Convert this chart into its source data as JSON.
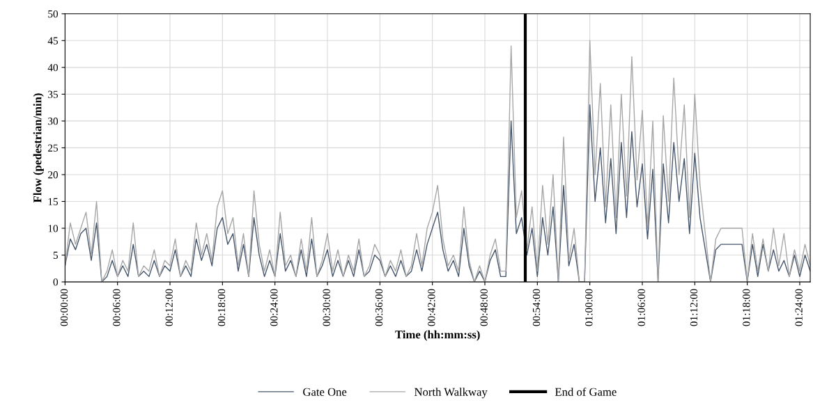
{
  "chart_data": {
    "type": "line",
    "xlabel": "Time (hh:mm:ss)",
    "ylabel": "Flow (pedestrian/min)",
    "x": [
      0,
      0.01,
      0.02,
      0.03,
      0.04,
      0.05,
      0.06,
      0.07,
      0.08,
      0.09,
      0.1,
      0.11,
      0.12,
      0.13,
      0.14,
      0.15,
      0.16,
      0.17,
      0.18,
      0.19,
      0.2,
      0.21,
      0.22,
      0.23,
      0.24,
      0.25,
      0.26,
      0.27,
      0.28,
      0.29,
      0.3,
      0.31,
      0.32,
      0.33,
      0.34,
      0.35,
      0.36,
      0.37,
      0.38,
      0.39,
      0.4,
      0.41,
      0.42,
      0.43,
      0.44,
      0.45,
      0.46,
      0.47,
      0.48,
      0.49,
      0.5,
      0.51,
      0.52,
      0.53,
      0.54,
      0.55,
      0.56,
      0.57,
      0.58,
      0.59,
      0.6,
      0.61,
      0.62,
      0.63,
      0.64,
      0.65,
      0.66,
      0.67,
      0.68,
      0.69,
      0.7,
      0.71,
      0.72,
      0.73,
      0.74,
      0.75,
      0.76,
      0.77,
      0.78,
      0.79,
      0.8,
      0.81,
      0.82,
      0.83,
      0.84,
      0.85,
      0.86,
      0.87,
      0.88,
      0.89,
      0.9,
      0.91,
      0.92,
      0.93,
      0.94,
      0.95,
      0.96,
      0.97,
      0.98,
      0.99,
      1.0,
      1.01,
      1.02,
      1.03,
      1.04,
      1.05,
      1.06,
      1.07,
      1.08,
      1.09,
      1.1,
      1.11,
      1.12,
      1.13,
      1.14,
      1.15,
      1.16,
      1.17,
      1.18,
      1.19,
      1.2,
      1.21,
      1.22,
      1.23,
      1.24,
      1.25,
      1.26,
      1.27,
      1.28,
      1.29,
      1.3,
      1.31,
      1.32,
      1.33,
      1.34,
      1.35,
      1.36,
      1.37,
      1.38,
      1.39,
      1.4,
      1.41,
      1.42
    ],
    "series": [
      {
        "name": "Gate One",
        "color": "#44546a",
        "values": [
          3,
          8,
          6,
          9,
          10,
          4,
          11,
          0,
          1,
          4,
          1,
          3,
          1,
          7,
          1,
          2,
          1,
          4,
          1,
          3,
          2,
          6,
          1,
          3,
          1,
          8,
          4,
          7,
          3,
          10,
          12,
          7,
          9,
          2,
          7,
          1,
          12,
          5,
          1,
          4,
          1,
          9,
          2,
          4,
          1,
          6,
          1,
          8,
          1,
          3,
          6,
          1,
          4,
          1,
          4,
          1,
          6,
          1,
          2,
          5,
          4,
          1,
          3,
          1,
          4,
          1,
          2,
          6,
          2,
          7,
          10,
          13,
          6,
          2,
          4,
          1,
          10,
          3,
          0,
          2,
          0,
          4,
          6,
          1,
          1,
          30,
          9,
          12,
          5,
          10,
          1,
          12,
          5,
          14,
          0,
          18,
          3,
          7,
          0,
          0,
          33,
          15,
          25,
          11,
          23,
          9,
          26,
          12,
          28,
          14,
          22,
          8,
          21,
          0,
          22,
          11,
          26,
          15,
          23,
          9,
          24,
          12,
          6,
          0,
          6,
          7,
          7,
          7,
          7,
          7,
          0,
          7,
          1,
          7,
          2,
          6,
          2,
          4,
          1,
          5,
          1,
          5,
          2
        ]
      },
      {
        "name": "North Walkway",
        "color": "#a6a6a6",
        "values": [
          3,
          11,
          7,
          10,
          13,
          5,
          15,
          0,
          2,
          6,
          1,
          4,
          2,
          11,
          1,
          3,
          2,
          6,
          1,
          4,
          3,
          8,
          1,
          4,
          2,
          11,
          5,
          9,
          4,
          14,
          17,
          9,
          12,
          3,
          9,
          1,
          17,
          7,
          2,
          6,
          1,
          13,
          3,
          5,
          1,
          8,
          2,
          12,
          1,
          4,
          9,
          2,
          6,
          1,
          5,
          2,
          8,
          1,
          3,
          7,
          5,
          1,
          4,
          2,
          6,
          1,
          3,
          9,
          3,
          10,
          13,
          18,
          8,
          3,
          5,
          2,
          14,
          4,
          0,
          3,
          0,
          5,
          8,
          2,
          2,
          44,
          12,
          17,
          6,
          14,
          2,
          18,
          7,
          20,
          0,
          27,
          4,
          10,
          0,
          0,
          45,
          20,
          37,
          14,
          33,
          12,
          35,
          16,
          42,
          19,
          32,
          10,
          30,
          0,
          31,
          15,
          38,
          20,
          33,
          12,
          35,
          18,
          9,
          0,
          8,
          10,
          10,
          10,
          10,
          10,
          0,
          9,
          2,
          8,
          2,
          10,
          3,
          9,
          1,
          6,
          2,
          7,
          3
        ]
      }
    ],
    "ref_lines": [
      {
        "axis": "x",
        "value": 0.877,
        "label": "End of Game",
        "color": "#000000"
      }
    ],
    "xlim": [
      0,
      1.42
    ],
    "xticks": [
      {
        "value": 0,
        "label": "00:00:00"
      },
      {
        "value": 0.1,
        "label": "00:06:00"
      },
      {
        "value": 0.2,
        "label": "00:12:00"
      },
      {
        "value": 0.3,
        "label": "00:18:00"
      },
      {
        "value": 0.4,
        "label": "00:24:00"
      },
      {
        "value": 0.5,
        "label": "00:30:00"
      },
      {
        "value": 0.6,
        "label": "00:36:00"
      },
      {
        "value": 0.7,
        "label": "00:42:00"
      },
      {
        "value": 0.8,
        "label": "00:48:00"
      },
      {
        "value": 0.9,
        "label": "00:54:00"
      },
      {
        "value": 1.0,
        "label": "01:00:00"
      },
      {
        "value": 1.1,
        "label": "01:06:00"
      },
      {
        "value": 1.2,
        "label": "01:12:00"
      },
      {
        "value": 1.3,
        "label": "01:18:00"
      },
      {
        "value": 1.4,
        "label": "01:24:00"
      }
    ],
    "ylim": [
      0,
      50
    ],
    "yticks": [
      0,
      5,
      10,
      15,
      20,
      25,
      30,
      35,
      40,
      45,
      50
    ],
    "grid": true,
    "legend": "bottom",
    "marker": "none",
    "line_style": "solid"
  }
}
